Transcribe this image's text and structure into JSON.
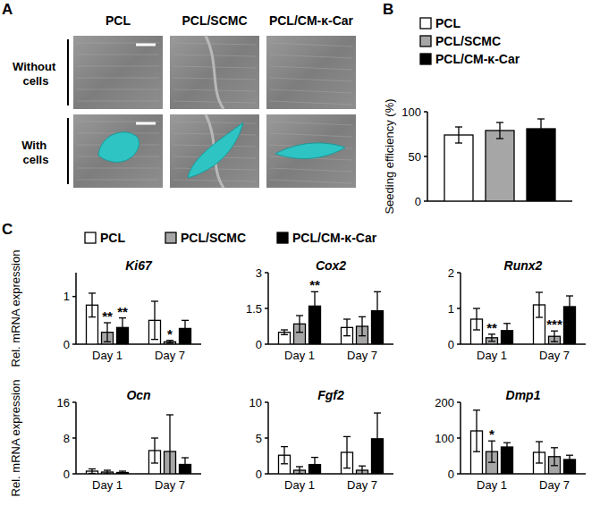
{
  "panel_labels": [
    "A",
    "B",
    "C"
  ],
  "image_panel": {
    "columns": [
      "PCL",
      "PCL/SCMC",
      "PCL/CM-κ-Car"
    ],
    "rows": [
      "Without cells",
      "With cells"
    ]
  },
  "chart_data": [
    {
      "type": "bar",
      "categories": [
        null
      ],
      "ylabel": "Seeding efficiency (%)",
      "ylim": [
        0,
        100
      ],
      "yticks": [
        0,
        50,
        100
      ],
      "legend": "top",
      "series": [
        {
          "name": "PCL",
          "color": "#ffffff",
          "values": [
            74
          ],
          "errors": [
            9
          ]
        },
        {
          "name": "PCL/SCMC",
          "color": "#a6a6a6",
          "values": [
            79
          ],
          "errors": [
            9
          ]
        },
        {
          "name": "PCL/CM-κ-Car",
          "color": "#000000",
          "values": [
            81
          ],
          "errors": [
            11
          ]
        }
      ]
    },
    {
      "type": "bar",
      "title": "Ki67",
      "categories": [
        "Day 1",
        "Day 7"
      ],
      "ylabel": "Rel. mRNA expression",
      "ylim": [
        0,
        1.5
      ],
      "yticks": [
        0,
        1
      ],
      "legend": "top",
      "series": [
        {
          "name": "PCL",
          "color": "#ffffff",
          "values": [
            0.82,
            0.5
          ],
          "errors": [
            0.25,
            0.4
          ],
          "significance": [
            null,
            null
          ]
        },
        {
          "name": "PCL/SCMC",
          "color": "#a6a6a6",
          "values": [
            0.25,
            0.05
          ],
          "errors": [
            0.2,
            0.03
          ],
          "significance": [
            "**",
            "*"
          ]
        },
        {
          "name": "PCL/CM-κ-Car",
          "color": "#000000",
          "values": [
            0.35,
            0.33
          ],
          "errors": [
            0.2,
            0.17
          ],
          "significance": [
            "**",
            null
          ]
        }
      ]
    },
    {
      "type": "bar",
      "title": "Cox2",
      "categories": [
        "Day 1",
        "Day 7"
      ],
      "ylim": [
        0,
        3
      ],
      "yticks": [
        0,
        1.5,
        3
      ],
      "series": [
        {
          "name": "PCL",
          "color": "#ffffff",
          "values": [
            0.5,
            0.7
          ],
          "errors": [
            0.1,
            0.35
          ],
          "significance": [
            null,
            null
          ]
        },
        {
          "name": "PCL/SCMC",
          "color": "#a6a6a6",
          "values": [
            0.85,
            0.75
          ],
          "errors": [
            0.35,
            0.4
          ],
          "significance": [
            null,
            null
          ]
        },
        {
          "name": "PCL/CM-κ-Car",
          "color": "#000000",
          "values": [
            1.6,
            1.4
          ],
          "errors": [
            0.6,
            0.8
          ],
          "significance": [
            "**",
            null
          ]
        }
      ]
    },
    {
      "type": "bar",
      "title": "Runx2",
      "categories": [
        "Day 1",
        "Day 7"
      ],
      "ylim": [
        0,
        2
      ],
      "yticks": [
        0,
        1,
        2
      ],
      "series": [
        {
          "name": "PCL",
          "color": "#ffffff",
          "values": [
            0.7,
            1.1
          ],
          "errors": [
            0.3,
            0.35
          ],
          "significance": [
            null,
            null
          ]
        },
        {
          "name": "PCL/SCMC",
          "color": "#a6a6a6",
          "values": [
            0.18,
            0.22
          ],
          "errors": [
            0.1,
            0.15
          ],
          "significance": [
            "**",
            "***"
          ]
        },
        {
          "name": "PCL/CM-κ-Car",
          "color": "#000000",
          "values": [
            0.38,
            1.05
          ],
          "errors": [
            0.2,
            0.3
          ],
          "significance": [
            null,
            null
          ]
        }
      ]
    },
    {
      "type": "bar",
      "title": "Ocn",
      "categories": [
        "Day 1",
        "Day 7"
      ],
      "ylabel": "Rel. mRNA expression",
      "ylim": [
        0,
        16
      ],
      "yticks": [
        0,
        8,
        16
      ],
      "series": [
        {
          "name": "PCL",
          "color": "#ffffff",
          "values": [
            0.6,
            5.2
          ],
          "errors": [
            0.5,
            2.8
          ],
          "significance": [
            null,
            null
          ]
        },
        {
          "name": "PCL/SCMC",
          "color": "#a6a6a6",
          "values": [
            0.4,
            5
          ],
          "errors": [
            0.4,
            8.2
          ],
          "significance": [
            null,
            null
          ]
        },
        {
          "name": "PCL/CM-κ-Car",
          "color": "#000000",
          "values": [
            0.3,
            2.1
          ],
          "errors": [
            0.3,
            1.5
          ],
          "significance": [
            null,
            null
          ]
        }
      ]
    },
    {
      "type": "bar",
      "title": "Fgf2",
      "categories": [
        "Day 1",
        "Day 7"
      ],
      "ylim": [
        0,
        10
      ],
      "yticks": [
        0,
        5,
        10
      ],
      "series": [
        {
          "name": "PCL",
          "color": "#ffffff",
          "values": [
            2.6,
            3
          ],
          "errors": [
            1.2,
            2.2
          ],
          "significance": [
            null,
            null
          ]
        },
        {
          "name": "PCL/SCMC",
          "color": "#a6a6a6",
          "values": [
            0.5,
            0.5
          ],
          "errors": [
            0.5,
            0.6
          ],
          "significance": [
            null,
            null
          ]
        },
        {
          "name": "PCL/CM-κ-Car",
          "color": "#000000",
          "values": [
            1.3,
            4.9
          ],
          "errors": [
            1,
            3.6
          ],
          "significance": [
            null,
            null
          ]
        }
      ]
    },
    {
      "type": "bar",
      "title": "Dmp1",
      "categories": [
        "Day 1",
        "Day 7"
      ],
      "ylim": [
        0,
        200
      ],
      "yticks": [
        0,
        100,
        200
      ],
      "series": [
        {
          "name": "PCL",
          "color": "#ffffff",
          "values": [
            120,
            60
          ],
          "errors": [
            58,
            30
          ],
          "significance": [
            null,
            null
          ]
        },
        {
          "name": "PCL/SCMC",
          "color": "#a6a6a6",
          "values": [
            62,
            48
          ],
          "errors": [
            30,
            25
          ],
          "significance": [
            "*",
            null
          ]
        },
        {
          "name": "PCL/CM-κ-Car",
          "color": "#000000",
          "values": [
            75,
            40
          ],
          "errors": [
            12,
            12
          ],
          "significance": [
            null,
            null
          ]
        }
      ]
    }
  ]
}
